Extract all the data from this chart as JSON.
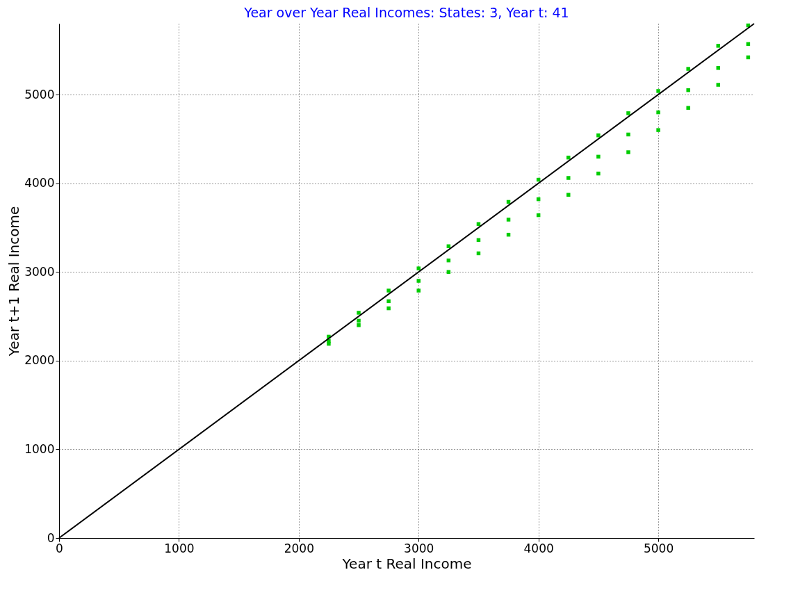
{
  "chart_data": {
    "type": "scatter",
    "title": "Year over Year Real Incomes: States: 3, Year t: 41",
    "xlabel": "Year t Real Income",
    "ylabel": "Year t+1 Real Income",
    "xlim": [
      0,
      5800
    ],
    "ylim": [
      0,
      5800
    ],
    "xticks": [
      0,
      1000,
      2000,
      3000,
      4000,
      5000
    ],
    "yticks": [
      0,
      1000,
      2000,
      3000,
      4000,
      5000
    ],
    "grid": true,
    "series": [
      {
        "color": "#00cc00",
        "marker": "square",
        "x": [
          2250,
          2250,
          2250,
          2500,
          2500,
          2500,
          2750,
          2750,
          2750,
          3000,
          3000,
          3000,
          3250,
          3250,
          3250,
          3500,
          3500,
          3500,
          3750,
          3750,
          3750,
          4000,
          4000,
          4000,
          4250,
          4250,
          4250,
          4500,
          4500,
          4500,
          4750,
          4750,
          4750,
          5000,
          5000,
          5000,
          5250,
          5250,
          5250,
          5500,
          5500,
          5500,
          5750,
          5750,
          5750
        ],
        "values": [
          2270,
          2220,
          2190,
          2540,
          2450,
          2400,
          2790,
          2670,
          2590,
          3040,
          2900,
          2790,
          3290,
          3130,
          3000,
          3540,
          3360,
          3210,
          3790,
          3590,
          3420,
          4040,
          3820,
          3640,
          4290,
          4060,
          3870,
          4540,
          4300,
          4110,
          4790,
          4550,
          4350,
          5040,
          4800,
          4600,
          5290,
          5050,
          4850,
          5550,
          5300,
          5110,
          5780,
          5570,
          5420
        ]
      },
      {
        "type": "line",
        "color": "#000000",
        "x": [
          0,
          5800
        ],
        "values": [
          0,
          5800
        ]
      }
    ]
  }
}
